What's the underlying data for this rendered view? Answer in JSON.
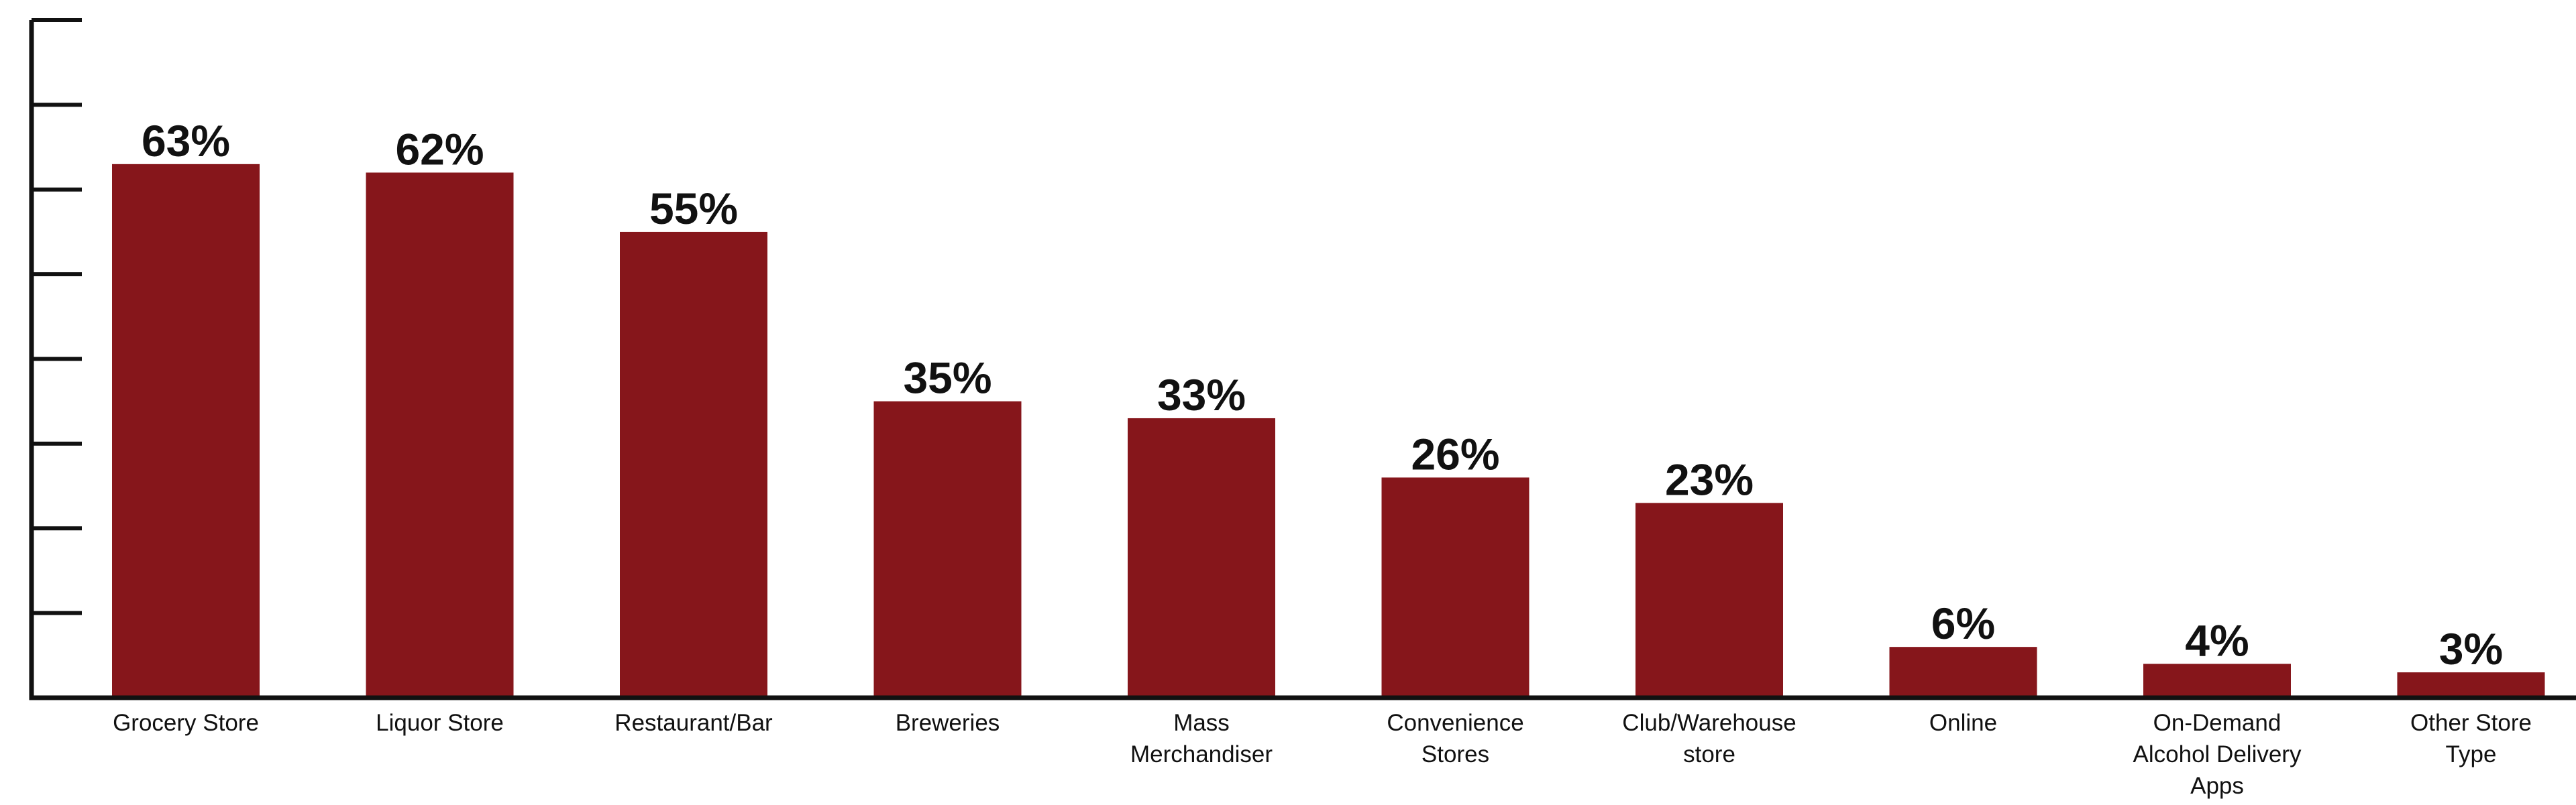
{
  "chart_data": {
    "type": "bar",
    "title": "",
    "xlabel": "",
    "ylabel": "",
    "categories": [
      "Grocery Store",
      "Liquor Store",
      "Restaurant/Bar",
      "Breweries",
      "Mass Merchandiser",
      "Convenience Stores",
      "Club/Warehouse store",
      "Online",
      "On-Demand Alcohol Delivery Apps",
      "Other Store Type"
    ],
    "category_lines": [
      [
        "Grocery Store"
      ],
      [
        "Liquor Store"
      ],
      [
        "Restaurant/Bar"
      ],
      [
        "Breweries"
      ],
      [
        "Mass",
        "Merchandiser"
      ],
      [
        "Convenience",
        "Stores"
      ],
      [
        "Club/Warehouse",
        "store"
      ],
      [
        "Online"
      ],
      [
        "On-Demand",
        "Alcohol Delivery",
        "Apps"
      ],
      [
        "Other Store",
        "Type"
      ]
    ],
    "values": [
      63,
      62,
      55,
      35,
      33,
      26,
      23,
      6,
      4,
      3
    ],
    "value_labels": [
      "63%",
      "62%",
      "55%",
      "35%",
      "33%",
      "26%",
      "23%",
      "6%",
      "4%",
      "3%"
    ],
    "ylim": [
      0,
      80
    ],
    "y_ticks": [
      0,
      10,
      20,
      30,
      40,
      50,
      60,
      70,
      80
    ],
    "y_tick_labels_shown": false,
    "grid": false,
    "legend": "none",
    "bar_color": "#86161B",
    "axis_color": "#111111"
  }
}
